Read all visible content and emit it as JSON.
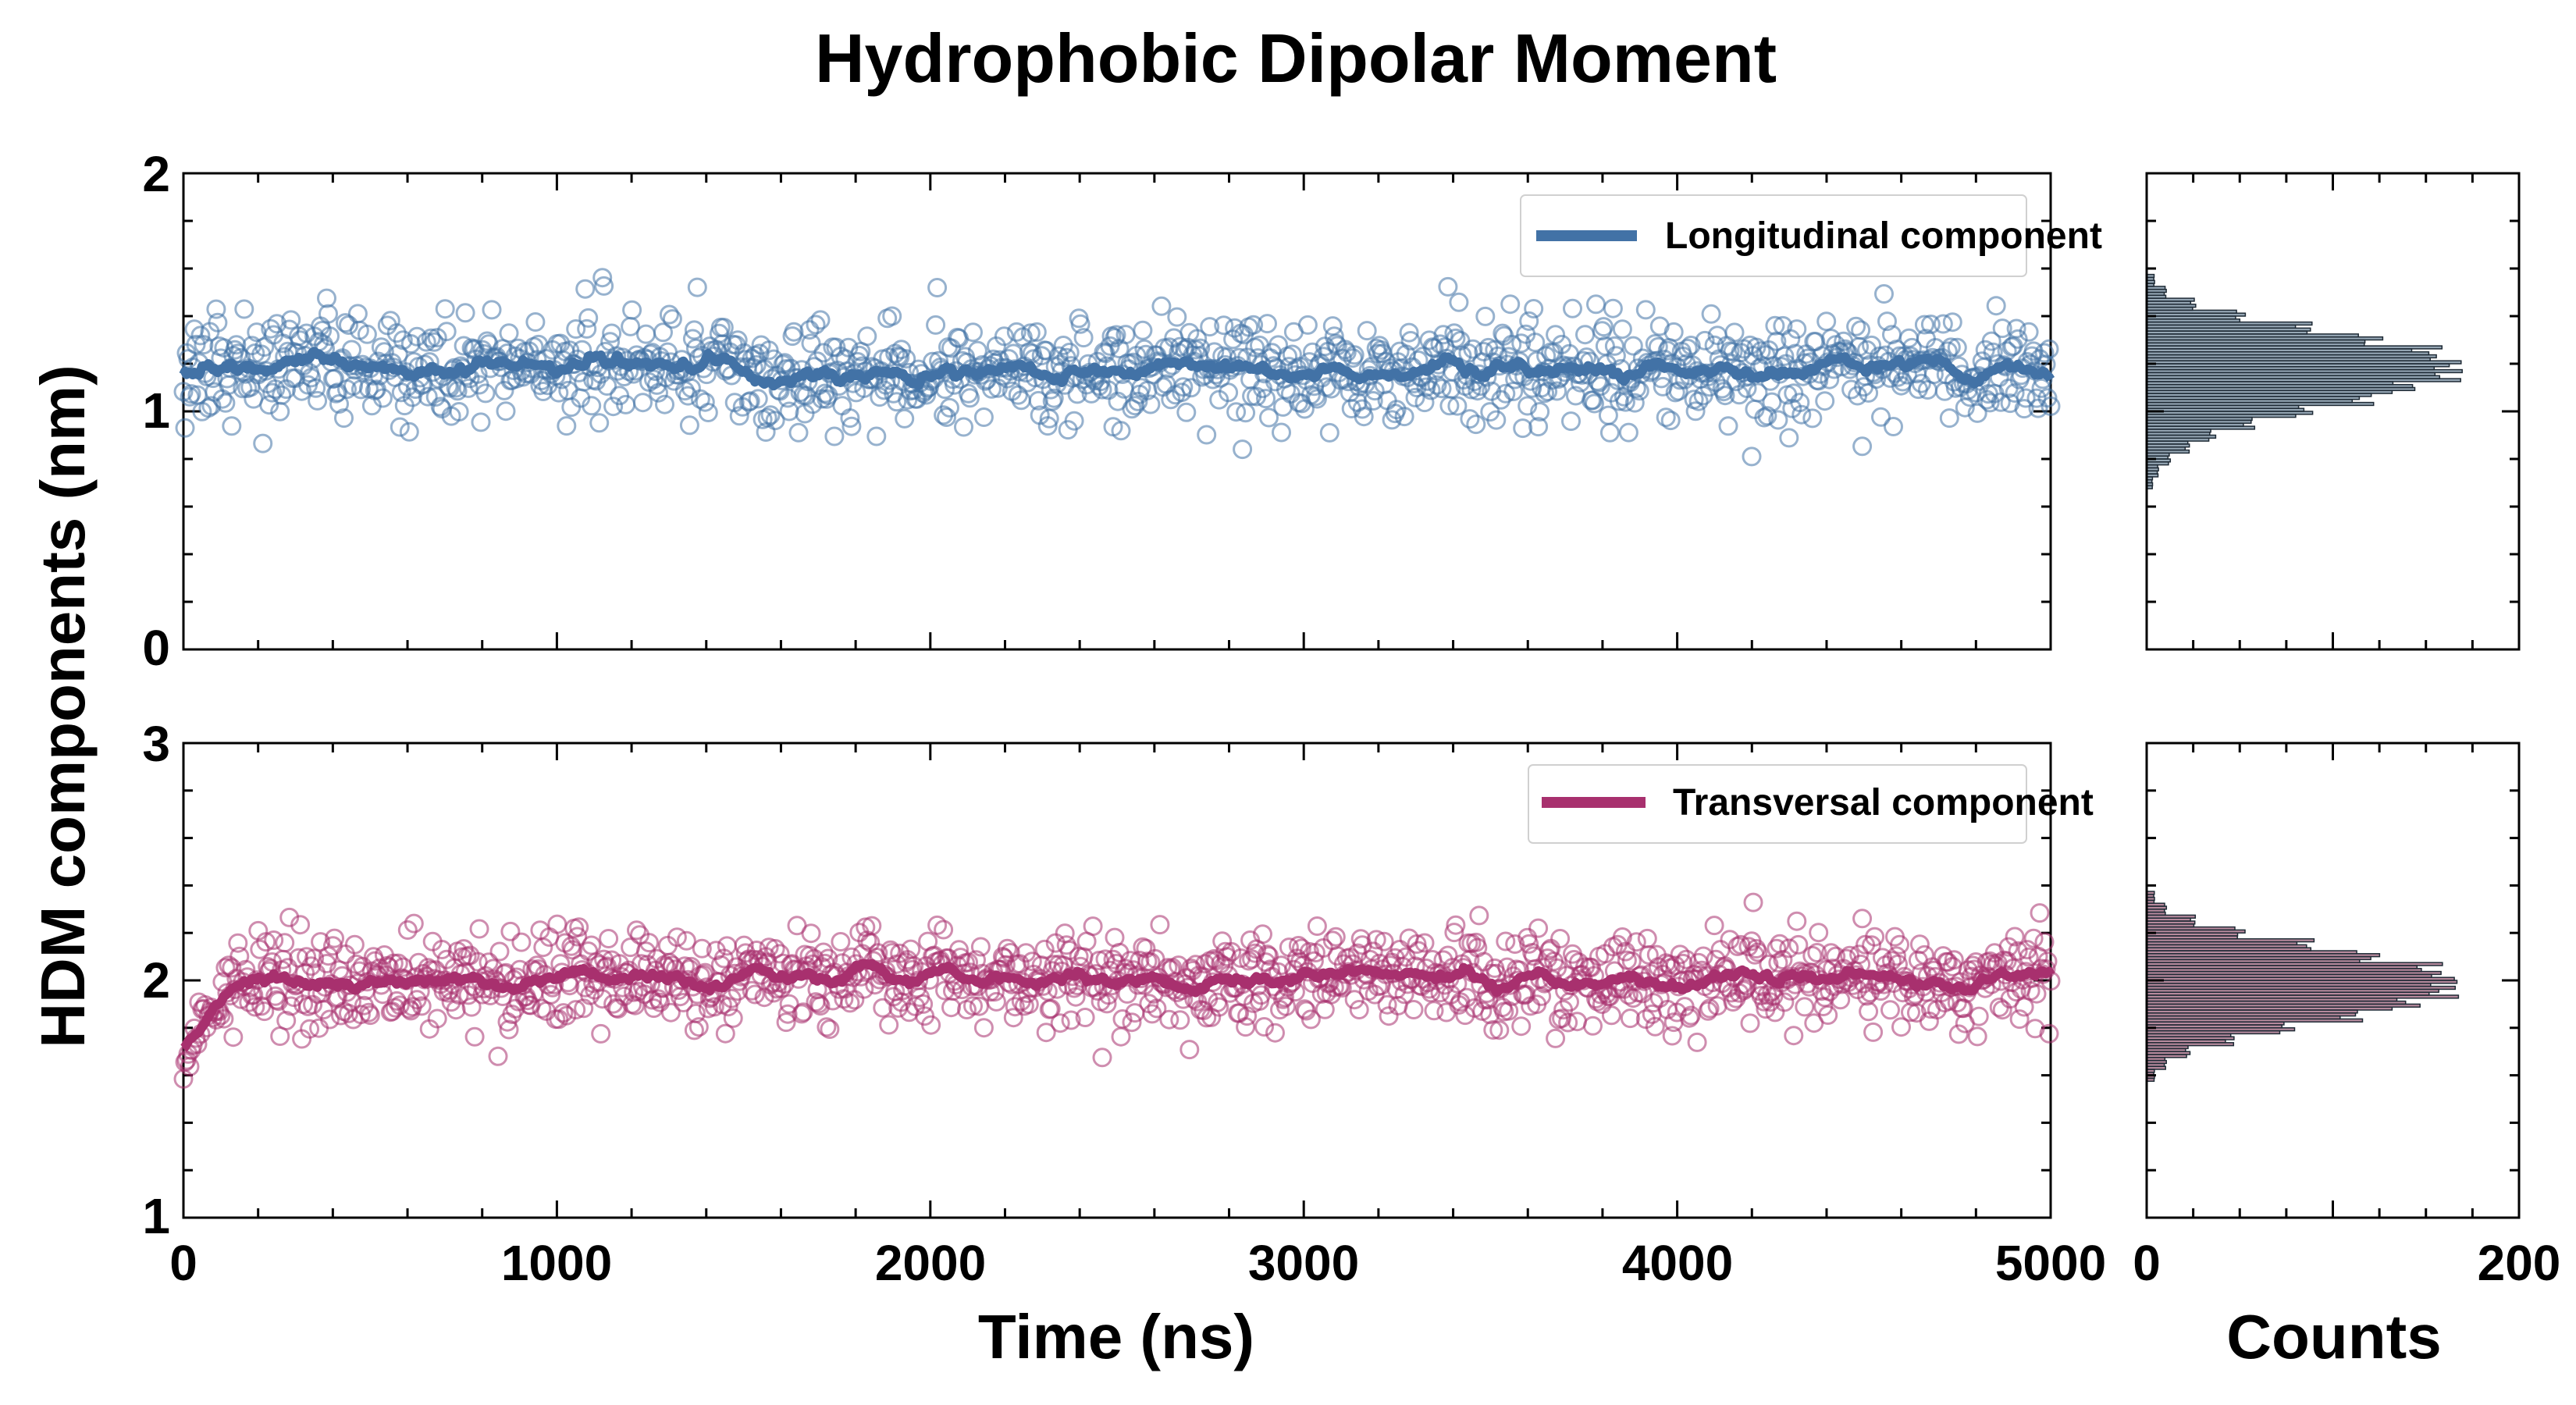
{
  "chart_data": [
    {
      "type": "scatter",
      "title": "Hydrophobic Dipolar Moment",
      "xlabel": "Time (ns)",
      "ylabel": "HDM components (nm)",
      "xlim": [
        0,
        5000
      ],
      "ylim": [
        0,
        2
      ],
      "xticks": [
        "0",
        "1000",
        "2000",
        "3000",
        "4000",
        "5000"
      ],
      "yticks": [
        "0",
        "1",
        "2"
      ],
      "legend_position": "top-right",
      "series": [
        {
          "name": "Longitudinal component",
          "color": "#4272a6",
          "style": "open circles + running mean line",
          "mean": 1.18,
          "std": 0.13,
          "n": 1200,
          "x_range": [
            0,
            5000
          ]
        }
      ]
    },
    {
      "type": "scatter",
      "xlabel": "Time (ns)",
      "xlim": [
        0,
        5000
      ],
      "ylim": [
        1,
        3
      ],
      "xticks": [
        "0",
        "1000",
        "2000",
        "3000",
        "4000",
        "5000"
      ],
      "yticks": [
        "1",
        "2",
        "3"
      ],
      "legend_position": "top-right",
      "series": [
        {
          "name": "Transversal component",
          "color": "#a8306e",
          "style": "open circles + running mean line",
          "mean": 2.01,
          "std": 0.12,
          "n": 1200,
          "x_range": [
            0,
            5000
          ],
          "initial_value": 1.6
        }
      ]
    },
    {
      "type": "bar",
      "orientation": "horizontal",
      "xlabel": "Counts",
      "xlim": [
        0,
        200
      ],
      "ylim": [
        0,
        2
      ],
      "xticks": [
        "0",
        "200"
      ],
      "bin_centers": [
        0.7,
        0.75,
        0.8,
        0.85,
        0.9,
        0.95,
        1.0,
        1.05,
        1.1,
        1.15,
        1.2,
        1.25,
        1.3,
        1.35,
        1.4,
        1.45,
        1.5,
        1.55
      ],
      "counts": [
        3,
        6,
        12,
        22,
        35,
        55,
        85,
        115,
        140,
        160,
        162,
        150,
        120,
        85,
        50,
        25,
        10,
        4
      ],
      "color": "#3f5f78"
    },
    {
      "type": "bar",
      "orientation": "horizontal",
      "xlabel": "Counts",
      "xlim": [
        0,
        200
      ],
      "ylim": [
        1,
        3
      ],
      "xticks": [
        "0",
        "200"
      ],
      "bin_centers": [
        1.6,
        1.65,
        1.7,
        1.75,
        1.8,
        1.85,
        1.9,
        1.95,
        2.0,
        2.05,
        2.1,
        2.15,
        2.2,
        2.25,
        2.3,
        2.35
      ],
      "counts": [
        4,
        10,
        22,
        45,
        75,
        110,
        140,
        158,
        162,
        150,
        120,
        85,
        50,
        25,
        10,
        4
      ],
      "color": "#7a2a4c"
    }
  ]
}
